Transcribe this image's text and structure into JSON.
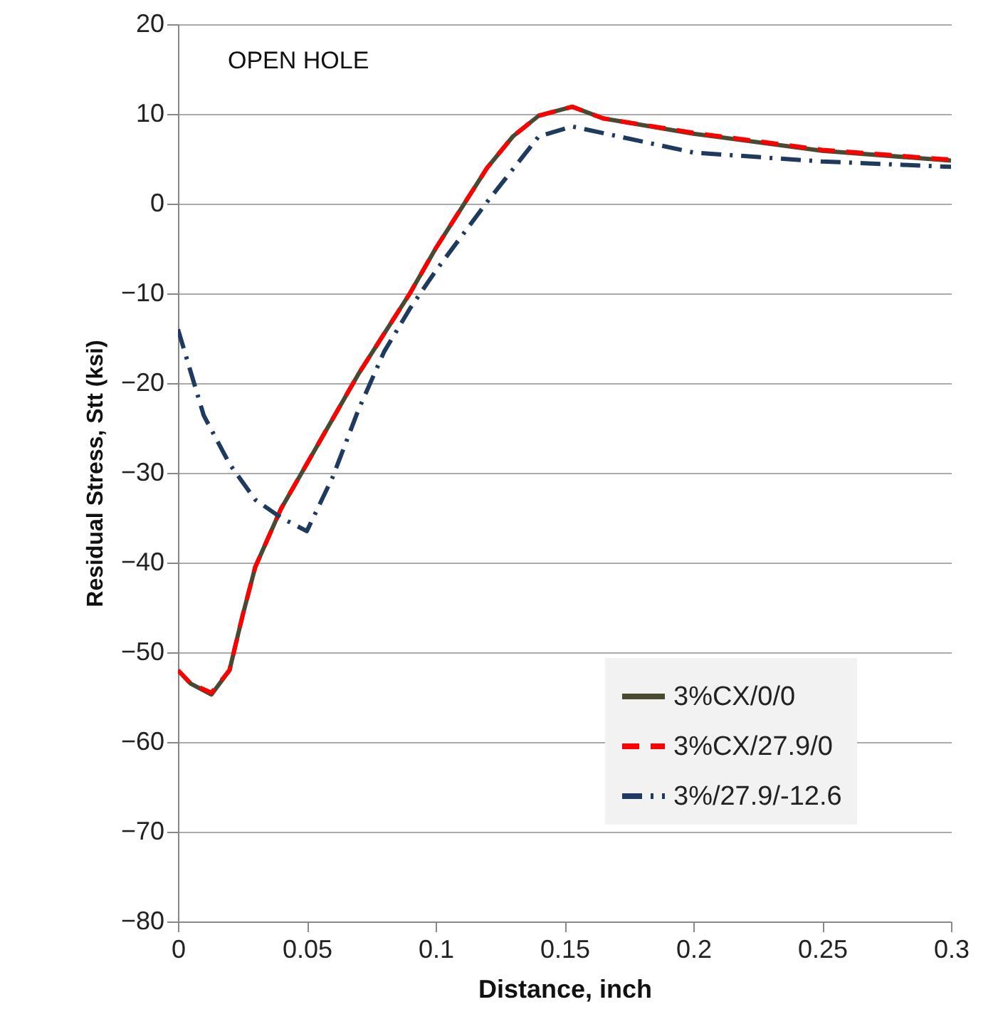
{
  "chart_data": {
    "type": "line",
    "xlabel": "Distance, inch",
    "ylabel": "Residual Stress, Stt (ksi)",
    "annotations": [
      "OPEN HOLE"
    ],
    "xlim": [
      0,
      0.3
    ],
    "xticks": [
      0,
      0.05,
      0.1,
      0.15,
      0.2,
      0.25,
      0.3
    ],
    "ylim": [
      -80,
      20
    ],
    "yticks": [
      -80,
      -70,
      -60,
      -50,
      -40,
      -30,
      -20,
      -10,
      0,
      10,
      20
    ],
    "grid": "y",
    "legend": "bottom right",
    "series": [
      {
        "name": "3%CX/0/0",
        "color": "#4a4a32",
        "line_style": "solid",
        "x": [
          0,
          0.005,
          0.013,
          0.02,
          0.025,
          0.03,
          0.04,
          0.05,
          0.06,
          0.07,
          0.08,
          0.09,
          0.1,
          0.11,
          0.12,
          0.13,
          0.14,
          0.153,
          0.165,
          0.2,
          0.25,
          0.3
        ],
        "values": [
          -52,
          -53.5,
          -54.7,
          -52,
          -46,
          -40.5,
          -34,
          -29,
          -24,
          -19,
          -14.5,
          -10,
          -5,
          -0.5,
          4,
          7.5,
          9.8,
          10.8,
          9.5,
          7.8,
          5.9,
          4.8
        ]
      },
      {
        "name": "3%CX/27.9/0",
        "color": "#ff0000",
        "line_style": "dashed",
        "x": [
          0,
          0.005,
          0.013,
          0.02,
          0.025,
          0.03,
          0.04,
          0.05,
          0.06,
          0.07,
          0.08,
          0.09,
          0.1,
          0.11,
          0.12,
          0.13,
          0.14,
          0.153,
          0.165,
          0.2,
          0.25,
          0.3
        ],
        "values": [
          -52,
          -53.5,
          -54.5,
          -52,
          -46,
          -40.5,
          -34,
          -29,
          -24,
          -19,
          -14.5,
          -10,
          -5,
          -0.5,
          4,
          7.5,
          9.8,
          10.8,
          9.5,
          7.9,
          6,
          4.9
        ]
      },
      {
        "name": "3%/27.9/-12.6",
        "color": "#1f3a5f",
        "line_style": "dashdot",
        "x": [
          0,
          0.01,
          0.02,
          0.03,
          0.04,
          0.05,
          0.06,
          0.07,
          0.08,
          0.09,
          0.1,
          0.12,
          0.14,
          0.153,
          0.2,
          0.25,
          0.3
        ],
        "values": [
          -14,
          -23.6,
          -29,
          -33,
          -35,
          -36.5,
          -30.5,
          -23,
          -16.5,
          -11.7,
          -7.5,
          0.2,
          7.5,
          8.6,
          5.7,
          4.7,
          4.1
        ]
      }
    ]
  }
}
